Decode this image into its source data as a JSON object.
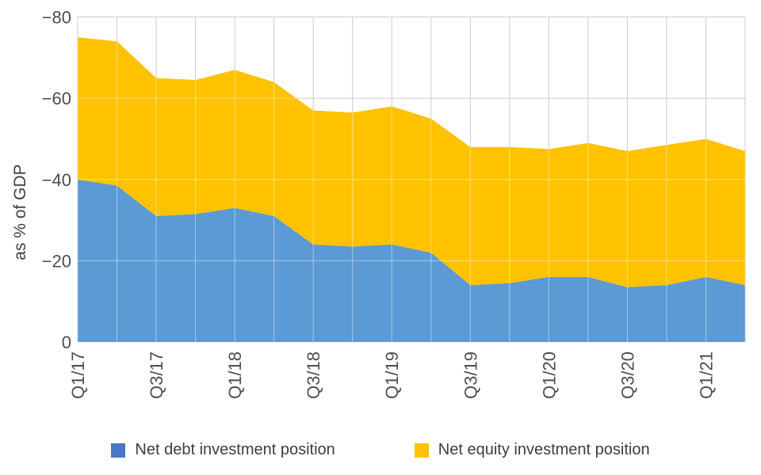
{
  "chart_data": {
    "type": "area",
    "stacked": true,
    "title": "",
    "xlabel": "",
    "ylabel": "as % of GDP",
    "ylim": [
      0,
      -80
    ],
    "grid": true,
    "legend_position": "bottom",
    "categories": [
      "Q1/17",
      "Q2/17",
      "Q3/17",
      "Q4/17",
      "Q1/18",
      "Q2/18",
      "Q3/18",
      "Q4/18",
      "Q1/19",
      "Q2/19",
      "Q3/19",
      "Q4/19",
      "Q1/20",
      "Q2/20",
      "Q3/20",
      "Q4/20",
      "Q1/21",
      "Q2/21"
    ],
    "x_tick_indices": [
      0,
      2,
      4,
      6,
      8,
      10,
      12,
      14,
      16
    ],
    "x_tick_labels": [
      "Q1/17",
      "Q3/17",
      "Q1/18",
      "Q3/18",
      "Q1/19",
      "Q3/19",
      "Q1/20",
      "Q3/20",
      "Q1/21"
    ],
    "y_ticks": [
      {
        "value": -80,
        "label": "−80"
      },
      {
        "value": -60,
        "label": "−60"
      },
      {
        "value": -40,
        "label": "−40"
      },
      {
        "value": -20,
        "label": "−20"
      },
      {
        "value": 0,
        "label": "0"
      }
    ],
    "series": [
      {
        "name": "Net debt investment position",
        "area_color": "#5B9AD4",
        "legend_color": "#4B76C8",
        "values": [
          -40,
          -38.5,
          -31,
          -31.5,
          -33,
          -31,
          -24,
          -23.5,
          -24,
          -22,
          -14,
          -14.5,
          -16,
          -16,
          -13.5,
          -14,
          -16,
          -14
        ]
      },
      {
        "name": "Net equity investment position",
        "area_color": "#FFC200",
        "legend_color": "#FFC200",
        "values": [
          -35,
          -35.5,
          -34,
          -33,
          -34,
          -33,
          -33,
          -33,
          -34,
          -33,
          -34,
          -33.5,
          -31.5,
          -33,
          -33.5,
          -34.5,
          -34,
          -33
        ]
      }
    ],
    "stack_totals": [
      -75,
      -74,
      -65,
      -64.5,
      -67,
      -64,
      -57,
      -56.5,
      -58,
      -55,
      -48,
      -48,
      -47.5,
      -49,
      -47,
      -48.5,
      -50,
      -47
    ]
  },
  "colors": {
    "background": "#FFFFFF",
    "gridline": "#CBCBCB",
    "grid_overlay_on_area": "rgba(255,255,255,0.45)",
    "tick_text": "#4D4D4D",
    "axis_title_text": "#3F3F3F",
    "legend_text": "#3D3D3D"
  }
}
